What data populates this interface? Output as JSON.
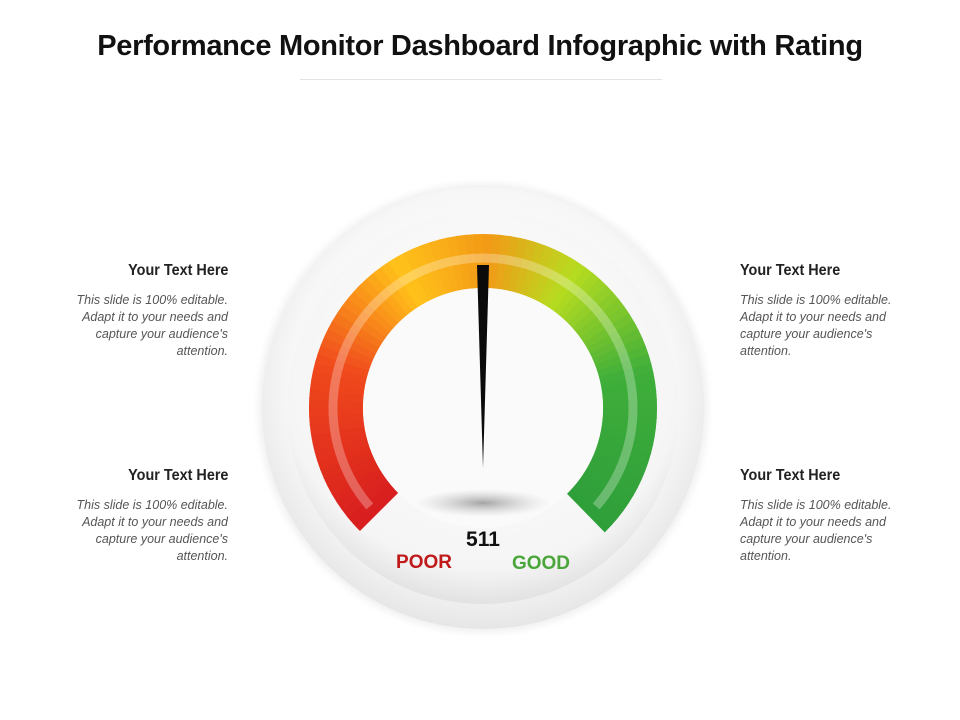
{
  "title": "Performance Monitor Dashboard Infographic with Rating",
  "gauge": {
    "value": "511",
    "fraction": 0.5,
    "min_label": "POOR",
    "max_label": "GOOD",
    "colors": {
      "poor": "#d81e1e",
      "mid": "#f39a16",
      "good": "#2e9e3a",
      "poor_label": "#c01a1a",
      "good_label": "#4aa63a"
    }
  },
  "blocks": [
    {
      "heading": "Your Text Here",
      "body": "This slide is 100% editable. Adapt it to your needs and capture your audience's attention."
    },
    {
      "heading": "Your Text Here",
      "body": "This slide is 100% editable. Adapt it to your needs and capture your audience's attention."
    },
    {
      "heading": "Your Text Here",
      "body": "This slide is 100% editable. Adapt it to your needs and capture your audience's attention."
    },
    {
      "heading": "Your Text Here",
      "body": "This slide is 100% editable. Adapt it to your needs and capture your audience's attention."
    }
  ]
}
